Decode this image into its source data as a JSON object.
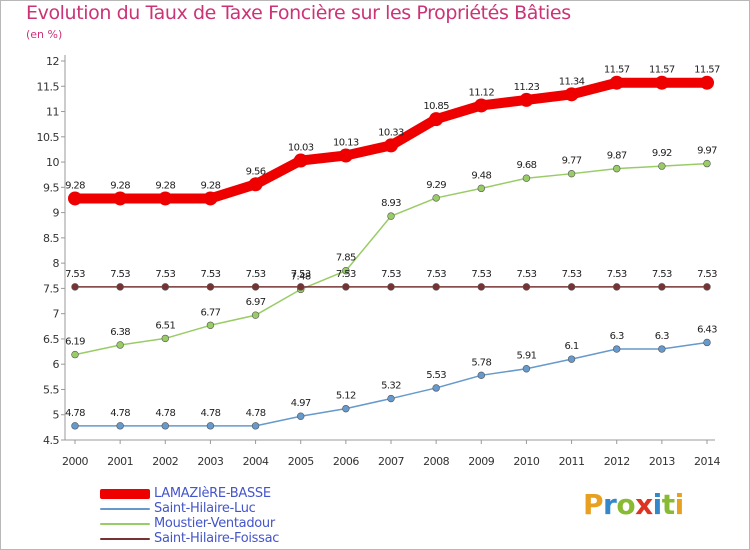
{
  "chart_data": {
    "type": "line",
    "title": "Evolution du Taux de Taxe Foncière sur les Propriétés Bâties",
    "subtitle": "(en %)",
    "x": [
      "2000",
      "2001",
      "2002",
      "2003",
      "2004",
      "2005",
      "2006",
      "2007",
      "2008",
      "2009",
      "2010",
      "2011",
      "2012",
      "2013",
      "2014"
    ],
    "yticks": [
      "4.5",
      "5",
      "5.5",
      "6",
      "6.5",
      "7",
      "7.5",
      "8",
      "8.5",
      "9",
      "9.5",
      "10",
      "10.5",
      "11",
      "11.5",
      "12"
    ],
    "ylim": [
      4.5,
      12
    ],
    "grid": false,
    "legend_position": "bottom-left",
    "series": [
      {
        "name": "LAMAZIèRE-BASSE",
        "color": "#ee0000",
        "values": [
          9.28,
          9.28,
          9.28,
          9.28,
          9.56,
          10.03,
          10.13,
          10.33,
          10.85,
          11.12,
          11.23,
          11.34,
          11.57,
          11.57,
          11.57
        ],
        "labels": [
          "9.28",
          "9.28",
          "9.28",
          "9.28",
          "9.56",
          "10.03",
          "10.13",
          "10.33",
          "10.85",
          "11.12",
          "11.23",
          "11.34",
          "11.57",
          "11.57",
          "11.57"
        ]
      },
      {
        "name": "Saint-Hilaire-Luc",
        "color": "#6699cc",
        "values": [
          4.78,
          4.78,
          4.78,
          4.78,
          4.78,
          4.97,
          5.12,
          5.32,
          5.53,
          5.78,
          5.91,
          6.1,
          6.3,
          6.3,
          6.43
        ],
        "labels": [
          "4.78",
          "4.78",
          "4.78",
          "4.78",
          "4.78",
          "4.97",
          "5.12",
          "5.32",
          "5.53",
          "5.78",
          "5.91",
          "6.1",
          "6.3",
          "6.3",
          "6.43"
        ]
      },
      {
        "name": "Moustier-Ventadour",
        "color": "#99cc66",
        "values": [
          6.19,
          6.38,
          6.51,
          6.77,
          6.97,
          7.48,
          7.85,
          8.93,
          9.29,
          9.48,
          9.68,
          9.77,
          9.87,
          9.92,
          9.97
        ],
        "labels": [
          "6.19",
          "6.38",
          "6.51",
          "6.77",
          "6.97",
          "7.48",
          "7.85",
          "8.93",
          "9.29",
          "9.48",
          "9.68",
          "9.77",
          "9.87",
          "9.92",
          "9.97"
        ]
      },
      {
        "name": "Saint-Hilaire-Foissac",
        "color": "#773333",
        "values": [
          7.53,
          7.53,
          7.53,
          7.53,
          7.53,
          7.53,
          7.53,
          7.53,
          7.53,
          7.53,
          7.53,
          7.53,
          7.53,
          7.53,
          7.53
        ],
        "labels": [
          "7.53",
          "7.53",
          "7.53",
          "7.53",
          "7.53",
          "7.53",
          "7.53",
          "7.53",
          "7.53",
          "7.53",
          "7.53",
          "7.53",
          "7.53",
          "7.53",
          "7.53"
        ]
      }
    ]
  },
  "brand": {
    "letters": [
      "P",
      "r",
      "o",
      "x",
      "i",
      "t",
      "i"
    ],
    "colors": [
      "#e8a020",
      "#3388cc",
      "#88bb33",
      "#dd3322",
      "#3388cc",
      "#88bb33",
      "#e8a020"
    ]
  }
}
